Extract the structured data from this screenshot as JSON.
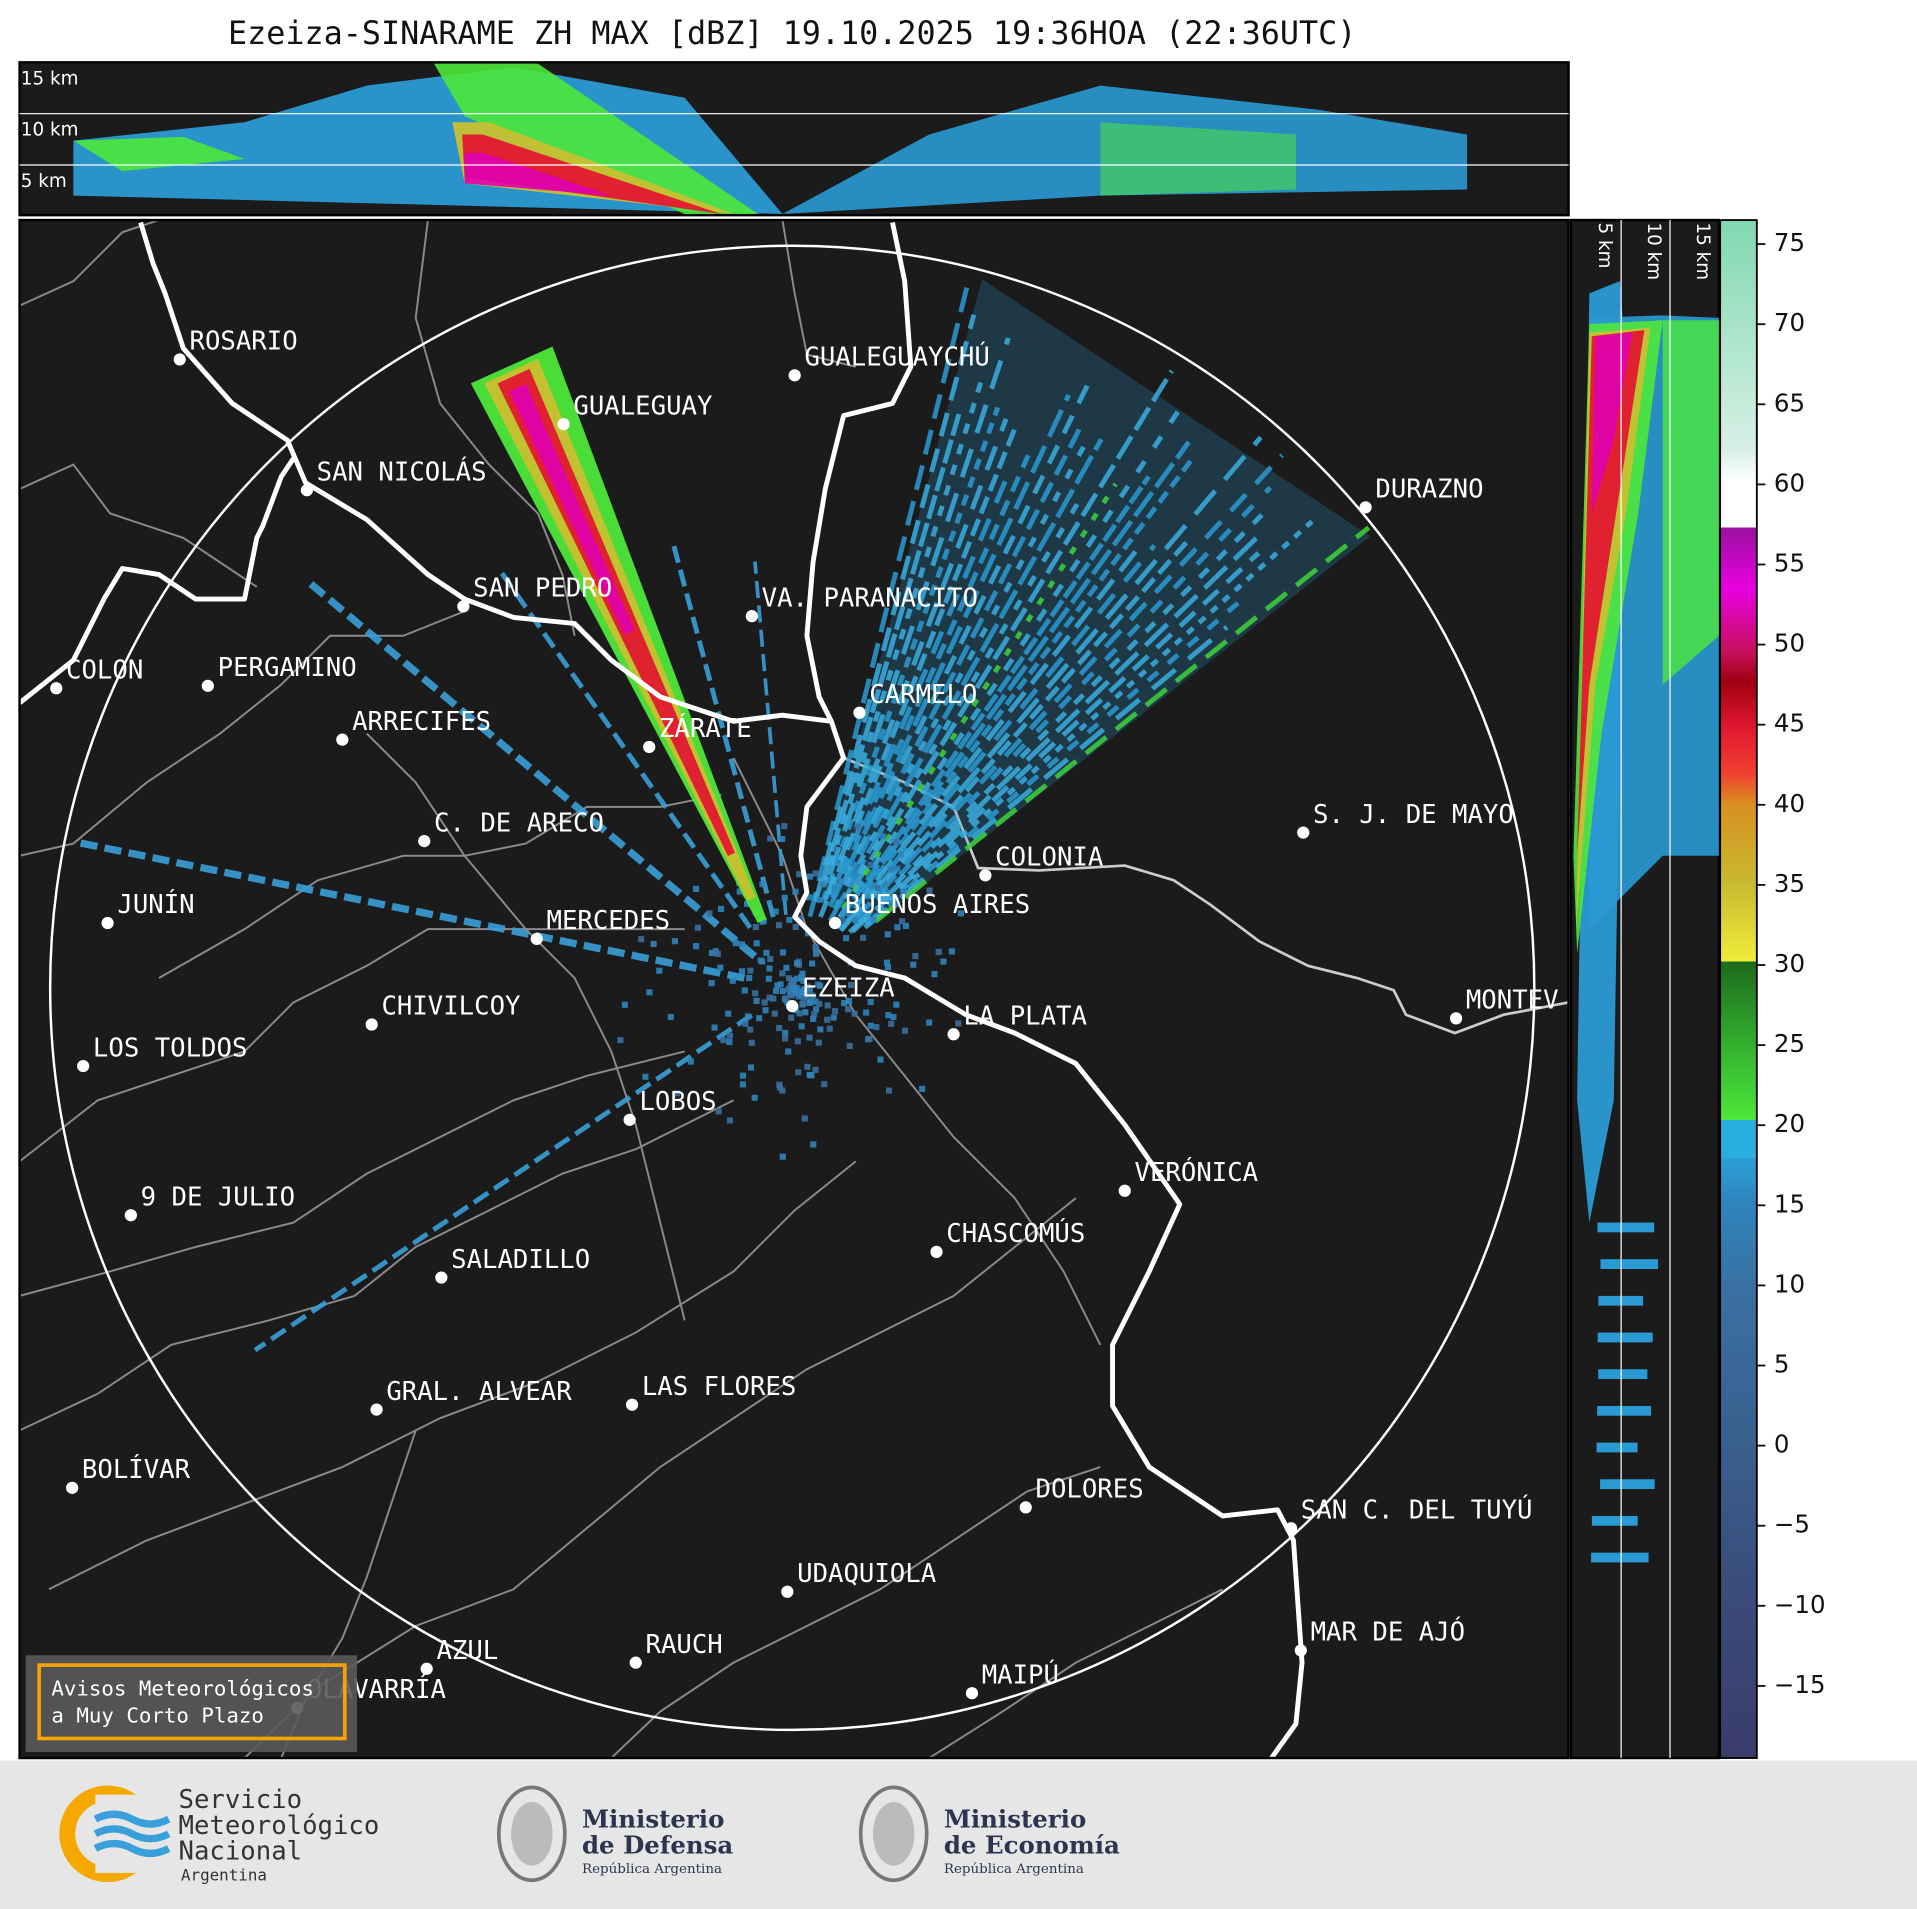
{
  "title": "Ezeiza-SINARAME ZH MAX [dBZ] 19.10.2025 19:36HOA (22:36UTC)",
  "height_axis_top": [
    "15 km",
    "10 km",
    "5 km"
  ],
  "height_axis_right": [
    "5 km",
    "10 km",
    "15 km"
  ],
  "cities": [
    "ROSARIO",
    "GUALEGUAYCHÚ",
    "GUALEGUAY",
    "SAN NICOLÁS",
    "DURAZNO",
    "SAN PEDRO",
    "VA. PARANACITO",
    "COLON",
    "PERGAMINO",
    "CARMELO",
    "ARRECIFES",
    "ZÁRATE",
    "S. J. DE MAYO",
    "C. DE ARECO",
    "COLONIA",
    "BUENOS AIRES",
    "JUNÍN",
    "MERCEDES",
    "EZEIZA",
    "MONTEV",
    "CHIVILCOY",
    "LA PLATA",
    "LOS TOLDOS",
    "LOBOS",
    "VERÓNICA",
    "9 DE JULIO",
    "CHASCOMÚS",
    "SALADILLO",
    "GRAL. ALVEAR",
    "LAS FLORES",
    "BOLÍVAR",
    "DOLORES",
    "SAN C. DEL TUYÚ",
    "UDAQUIOLA",
    "MAR DE AJÓ",
    "RAUCH",
    "AZUL",
    "OLAVARRÍA",
    "MAIPÚ"
  ],
  "colorbar": {
    "lim": [
      -19.5,
      76.5
    ],
    "ticks": [
      75,
      70,
      65,
      60,
      55,
      50,
      45,
      40,
      35,
      30,
      25,
      20,
      15,
      10,
      5,
      0,
      {
        "value": -5,
        "label": "−5"
      },
      {
        "value": -10,
        "label": "−10"
      },
      {
        "value": -15,
        "label": "−15"
      }
    ]
  },
  "notice": [
    "Avisos Meteorológicos",
    "a Muy Corto Plazo"
  ],
  "logos": {
    "smn": [
      "Servicio",
      "Meteorológico",
      "Nacional",
      "Argentina"
    ],
    "defensa": [
      "Ministerio",
      "de Defensa",
      "República Argentina"
    ],
    "economia": [
      "Ministerio",
      "de Economía",
      "República Argentina"
    ]
  }
}
